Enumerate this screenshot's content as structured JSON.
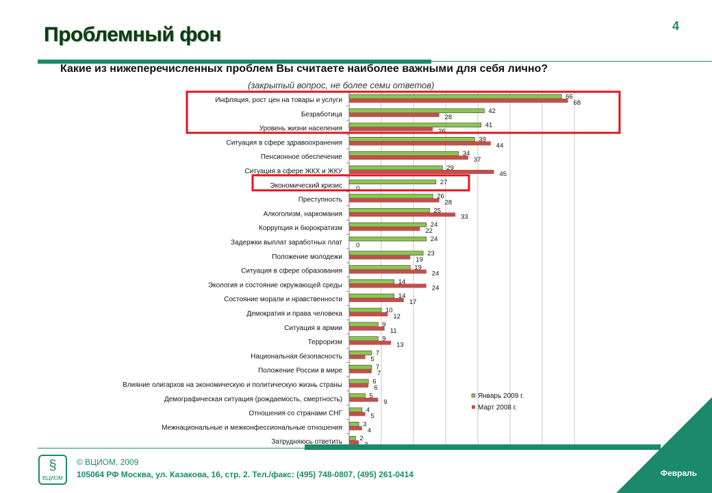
{
  "slide": {
    "title": "Проблемный фон",
    "page_number": "4",
    "question": "Какие из нижеперечисленных проблем Вы считаете наиболее важными для себя лично?",
    "note": "(закрытый вопрос, не более семи ответов)"
  },
  "footer": {
    "copyright": "© ВЦИОМ, 2009",
    "address": "105064 РФ Москва, ул. Казакова, 16, стр. 2. Тел./факс: (495) 748-0807, (495) 261-0414",
    "logo_text": "ВЦИОМ",
    "month": "Февраль"
  },
  "colors": {
    "accent": "#1a8a6a",
    "jan2009": "#8dc454",
    "mar2008": "#c0504d",
    "highlight": "#e0141e"
  },
  "chart_data": {
    "type": "bar",
    "orientation": "horizontal",
    "xlim": [
      0,
      70
    ],
    "grid": true,
    "legend_position": "bottom-right",
    "categories": [
      "Инфляция, рост цен на товары и услуги",
      "Безработица",
      "Уровень жизни населения",
      "Ситуация в сфере здравоохранения",
      "Пенсионное обеспечение",
      "Ситуация в сфере ЖКХ и ЖКУ",
      "Экономический кризис",
      "Преступность",
      "Алкоголизм, наркомания",
      "Коррупция и бюрократизм",
      "Задержки выплат заработных плат",
      "Положение молодежи",
      "Ситуация в сфере образования",
      "Экология и состояние окружающей среды",
      "Состояние морали и нравственности",
      "Демократия и права человека",
      "Ситуация в армии",
      "Терроризм",
      "Национальная безопасность",
      "Положение России в мире",
      "Влияние олигархов на экономическую и политическую жизнь страны",
      "Демографическая ситуация (рождаемость, смертность)",
      "Отношения со странами СНГ",
      "Межнациональные и межконфессиональные отношения",
      "Затрудняюсь ответить"
    ],
    "series": [
      {
        "name": "Январь 2009 г.",
        "values": [
          66,
          42,
          41,
          39,
          34,
          29,
          27,
          26,
          25,
          24,
          24,
          23,
          19,
          14,
          14,
          10,
          9,
          9,
          7,
          7,
          6,
          5,
          4,
          3,
          2
        ]
      },
      {
        "name": "Март 2008 г.",
        "values": [
          68,
          28,
          26,
          44,
          37,
          45,
          0,
          28,
          33,
          22,
          0,
          19,
          24,
          24,
          17,
          12,
          11,
          13,
          5,
          7,
          6,
          9,
          5,
          4,
          3
        ]
      }
    ],
    "highlighted_categories": [
      "Инфляция, рост цен на товары и услуги",
      "Безработица",
      "Уровень жизни населения",
      "Экономический кризис"
    ]
  }
}
